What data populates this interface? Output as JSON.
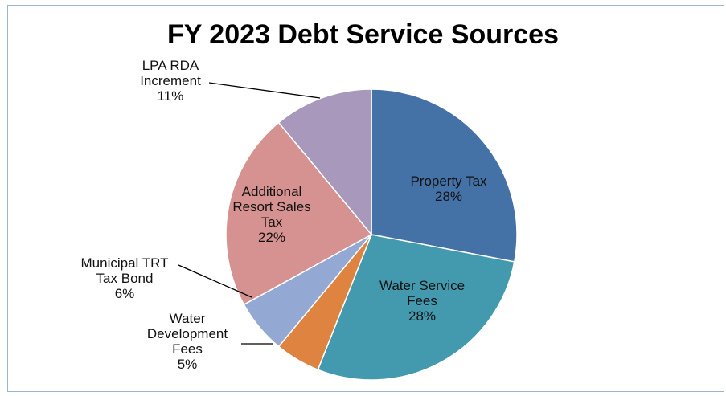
{
  "chart_data": {
    "type": "pie",
    "title": "FY 2023 Debt Service Sources",
    "slices": [
      {
        "label": "Property Tax",
        "label_lines": [
          "Property Tax",
          "28%"
        ],
        "value": 28,
        "percent_label": "28%",
        "color": "#4471a6"
      },
      {
        "label": "Water Service Fees",
        "label_lines": [
          "Water Service",
          "Fees",
          "28%"
        ],
        "value": 28,
        "percent_label": "28%",
        "color": "#4399ad"
      },
      {
        "label": "Water Development Fees",
        "label_lines": [
          "Water",
          "Development",
          "Fees",
          "5%"
        ],
        "value": 5,
        "percent_label": "5%",
        "color": "#df8440"
      },
      {
        "label": "Municipal TRT Tax Bond",
        "label_lines": [
          "Municipal TRT",
          "Tax Bond",
          "6%"
        ],
        "value": 6,
        "percent_label": "6%",
        "color": "#93a9d3"
      },
      {
        "label": "Additional Resort Sales Tax",
        "label_lines": [
          "Additional",
          "Resort Sales",
          "Tax",
          "22%"
        ],
        "value": 22,
        "percent_label": "22%",
        "color": "#d59290"
      },
      {
        "label": "LPA RDA Increment",
        "label_lines": [
          "LPA RDA",
          "Increment",
          "11%"
        ],
        "value": 11,
        "percent_label": "11%",
        "color": "#a898bc"
      }
    ]
  }
}
